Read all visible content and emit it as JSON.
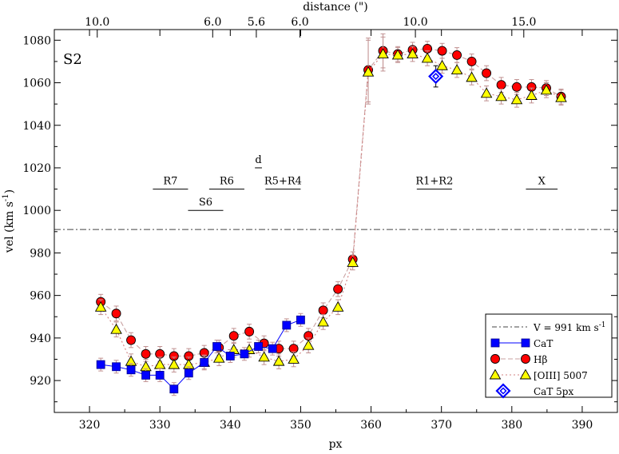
{
  "chart_data": {
    "type": "scatter",
    "panel_label": "S2",
    "xlabel": "px",
    "ylabel": "vel (km s",
    "ylabel_sup": "-1",
    "ylabel_close": ")",
    "top_label": "distance (\")",
    "xlim": [
      315,
      395
    ],
    "ylim": [
      905,
      1085
    ],
    "x_ticks": [
      320,
      330,
      340,
      350,
      360,
      370,
      380,
      390
    ],
    "y_ticks": [
      920,
      940,
      960,
      980,
      1000,
      1020,
      1040,
      1060,
      1080
    ],
    "top_ticks": [
      {
        "px": 321.1,
        "label": "10.0"
      },
      {
        "px": 337.5,
        "label": "6.0"
      },
      {
        "px": 343.7,
        "label": "5.6"
      },
      {
        "px": 349.9,
        "label": "6.0"
      },
      {
        "px": 366.3,
        "label": "10.0"
      },
      {
        "px": 381.7,
        "label": "15.0"
      }
    ],
    "systemic_velocity": 991,
    "regions": [
      {
        "label": "R7",
        "x_start": 329.0,
        "x_end": 334.0,
        "y": 1010
      },
      {
        "label": "R6",
        "x_start": 337.0,
        "x_end": 342.0,
        "y": 1010
      },
      {
        "label": "R5+R4",
        "x_start": 345.0,
        "x_end": 350.0,
        "y": 1010
      },
      {
        "label": "S6",
        "x_start": 334.0,
        "x_end": 339.0,
        "y": 1000
      },
      {
        "label": "d",
        "x_start": 343.5,
        "x_end": 344.5,
        "y": 1020
      },
      {
        "label": "R1+R2",
        "x_start": 366.5,
        "x_end": 371.5,
        "y": 1010
      },
      {
        "label": "X",
        "x_start": 382.0,
        "x_end": 386.5,
        "y": 1010
      }
    ],
    "series": [
      {
        "name": "CaT",
        "marker": "square",
        "color": "#0000ff",
        "line": "solid",
        "line_color": "#0000ff",
        "points": [
          [
            321.6,
            927.5,
            3
          ],
          [
            323.8,
            926.5,
            3
          ],
          [
            325.9,
            925.0,
            3
          ],
          [
            328.0,
            922.5,
            3
          ],
          [
            330.0,
            922.5,
            3
          ],
          [
            332.0,
            916.0,
            3
          ],
          [
            334.1,
            923.5,
            3
          ],
          [
            336.3,
            928.5,
            3
          ],
          [
            338.1,
            936.0,
            3
          ],
          [
            340.0,
            931.5,
            3
          ],
          [
            342.0,
            932.5,
            3
          ],
          [
            344.0,
            936.0,
            3
          ],
          [
            346.0,
            935.0,
            3
          ],
          [
            348.0,
            946.0,
            3
          ],
          [
            350.0,
            948.5,
            3
          ]
        ]
      },
      {
        "name": "Hβ",
        "marker": "circle",
        "color": "#ff0000",
        "line": "dashed",
        "line_color": "#c8a0a0",
        "points": [
          [
            321.6,
            957.0,
            3.5
          ],
          [
            323.8,
            951.5,
            3.5
          ],
          [
            325.9,
            939.0,
            3.5
          ],
          [
            328.0,
            932.5,
            3.5
          ],
          [
            330.0,
            932.5,
            3.5
          ],
          [
            332.0,
            931.5,
            3.5
          ],
          [
            334.1,
            931.5,
            3.5
          ],
          [
            336.3,
            933.0,
            3.5
          ],
          [
            338.4,
            935.5,
            3.5
          ],
          [
            340.5,
            941.0,
            3.5
          ],
          [
            342.7,
            943.0,
            3.5
          ],
          [
            344.8,
            937.5,
            3.5
          ],
          [
            346.9,
            935.0,
            3.5
          ],
          [
            349.0,
            935.0,
            3.5
          ],
          [
            351.1,
            941.0,
            3.5
          ],
          [
            353.2,
            953.0,
            3.5
          ],
          [
            355.3,
            963.0,
            3.5
          ],
          [
            357.4,
            977.0,
            3.5
          ],
          [
            359.6,
            1066.0,
            15
          ],
          [
            361.7,
            1075.0,
            8
          ],
          [
            363.8,
            1073.5,
            3.5
          ],
          [
            365.9,
            1075.5,
            3.5
          ],
          [
            368.0,
            1076.0,
            3.5
          ],
          [
            370.1,
            1075.0,
            3.5
          ],
          [
            372.2,
            1073.0,
            3.5
          ],
          [
            374.3,
            1070.0,
            3.5
          ],
          [
            376.4,
            1064.5,
            3.5
          ],
          [
            378.5,
            1059.0,
            3.5
          ],
          [
            380.7,
            1058.0,
            3.5
          ],
          [
            382.8,
            1058.0,
            3.5
          ],
          [
            384.9,
            1057.5,
            3.5
          ],
          [
            387.0,
            1053.5,
            3.5
          ]
        ]
      },
      {
        "name": "[OIII] 5007",
        "marker": "triangle",
        "color": "#ffff00",
        "line": "dotted",
        "line_color": "#d08080",
        "points": [
          [
            321.6,
            954.5,
            3.5
          ],
          [
            323.8,
            944.0,
            3.5
          ],
          [
            325.9,
            929.0,
            3.5
          ],
          [
            328.0,
            926.5,
            3.5
          ],
          [
            330.0,
            927.5,
            3.5
          ],
          [
            332.0,
            927.5,
            3.5
          ],
          [
            334.1,
            927.5,
            3.5
          ],
          [
            336.3,
            928.5,
            3.5
          ],
          [
            338.4,
            930.5,
            3.5
          ],
          [
            340.5,
            934.5,
            3.5
          ],
          [
            342.7,
            934.5,
            3.5
          ],
          [
            344.8,
            931.0,
            3.5
          ],
          [
            346.9,
            929.0,
            3.5
          ],
          [
            349.0,
            930.0,
            3.5
          ],
          [
            351.1,
            936.5,
            3.5
          ],
          [
            353.2,
            947.5,
            3.5
          ],
          [
            355.3,
            954.5,
            3.5
          ],
          [
            357.4,
            975.5,
            3.5
          ],
          [
            359.6,
            1065.0,
            15
          ],
          [
            361.7,
            1073.5,
            8
          ],
          [
            363.8,
            1073.0,
            3.5
          ],
          [
            365.9,
            1073.5,
            3.5
          ],
          [
            368.0,
            1071.5,
            3.5
          ],
          [
            370.1,
            1068.0,
            3.5
          ],
          [
            372.2,
            1066.0,
            3.5
          ],
          [
            374.3,
            1062.5,
            3.5
          ],
          [
            376.4,
            1055.0,
            3.5
          ],
          [
            378.5,
            1053.5,
            3.5
          ],
          [
            380.7,
            1052.0,
            3.5
          ],
          [
            382.8,
            1054.0,
            3.5
          ],
          [
            384.9,
            1056.5,
            3.5
          ],
          [
            387.0,
            1053.0,
            3.5
          ]
        ]
      },
      {
        "name": "CaT  5px",
        "marker": "diamond",
        "color": "#0000ff",
        "line": "none",
        "points": [
          [
            369.2,
            1063.0,
            5
          ]
        ]
      }
    ],
    "legend": {
      "position": "bottom-right",
      "entries": [
        {
          "label": "V = 991 km s",
          "sup": "-1",
          "style": "dashdot"
        },
        {
          "label": "CaT",
          "series": 0
        },
        {
          "label": "Hβ",
          "series": 1
        },
        {
          "label": "[OIII] 5007",
          "series": 2
        },
        {
          "label": "CaT  5px",
          "series": 3
        }
      ]
    }
  }
}
